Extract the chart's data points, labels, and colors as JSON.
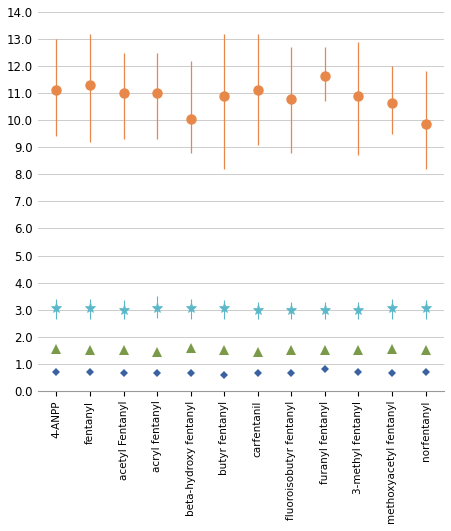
{
  "categories": [
    "4-ANPP",
    "fentanyl",
    "acetyl Fentanyl",
    "acryl fentanyl",
    "beta-hydroxy fentanyl",
    "butyr fentanyl",
    "carfentanil",
    "fluoroisobutyr fentanyl",
    "furanyl fentanyl",
    "3-methyl fentanyl",
    "methoxyacetyl fentanyl",
    "norfentanyl"
  ],
  "orange_centers": [
    11.1,
    11.3,
    11.0,
    11.0,
    10.05,
    10.9,
    11.1,
    10.8,
    11.65,
    10.9,
    10.65,
    9.85
  ],
  "orange_upper": [
    13.0,
    13.2,
    12.5,
    12.5,
    12.2,
    13.2,
    13.2,
    12.7,
    12.7,
    12.9,
    12.0,
    11.8
  ],
  "orange_lower": [
    9.4,
    9.2,
    9.3,
    9.3,
    8.8,
    8.2,
    9.1,
    8.8,
    10.7,
    8.7,
    9.5,
    8.2
  ],
  "cyan_centers": [
    3.05,
    3.05,
    3.0,
    3.05,
    3.05,
    3.05,
    3.0,
    3.0,
    3.0,
    3.0,
    3.05,
    3.05
  ],
  "cyan_upper": [
    3.4,
    3.4,
    3.35,
    3.5,
    3.4,
    3.35,
    3.3,
    3.3,
    3.3,
    3.3,
    3.4,
    3.35
  ],
  "cyan_lower": [
    2.65,
    2.65,
    2.65,
    2.7,
    2.65,
    2.65,
    2.65,
    2.65,
    2.65,
    2.65,
    2.65,
    2.65
  ],
  "green_values": [
    1.55,
    1.5,
    1.5,
    1.45,
    1.6,
    1.5,
    1.45,
    1.5,
    1.5,
    1.5,
    1.55,
    1.5
  ],
  "blue_values": [
    0.7,
    0.7,
    0.65,
    0.65,
    0.65,
    0.6,
    0.65,
    0.65,
    0.8,
    0.7,
    0.65,
    0.7
  ],
  "orange_color": "#E8874A",
  "cyan_color": "#5BB8C8",
  "green_color": "#7A9A4A",
  "blue_color": "#3A62A0",
  "ylim": [
    0.0,
    14.0
  ],
  "yticks": [
    0.0,
    1.0,
    2.0,
    3.0,
    4.0,
    5.0,
    6.0,
    7.0,
    8.0,
    9.0,
    10.0,
    11.0,
    12.0,
    13.0,
    14.0
  ],
  "background_color": "#FFFFFF",
  "grid_color": "#CCCCCC",
  "figwidth": 4.51,
  "figheight": 5.31,
  "dpi": 100
}
